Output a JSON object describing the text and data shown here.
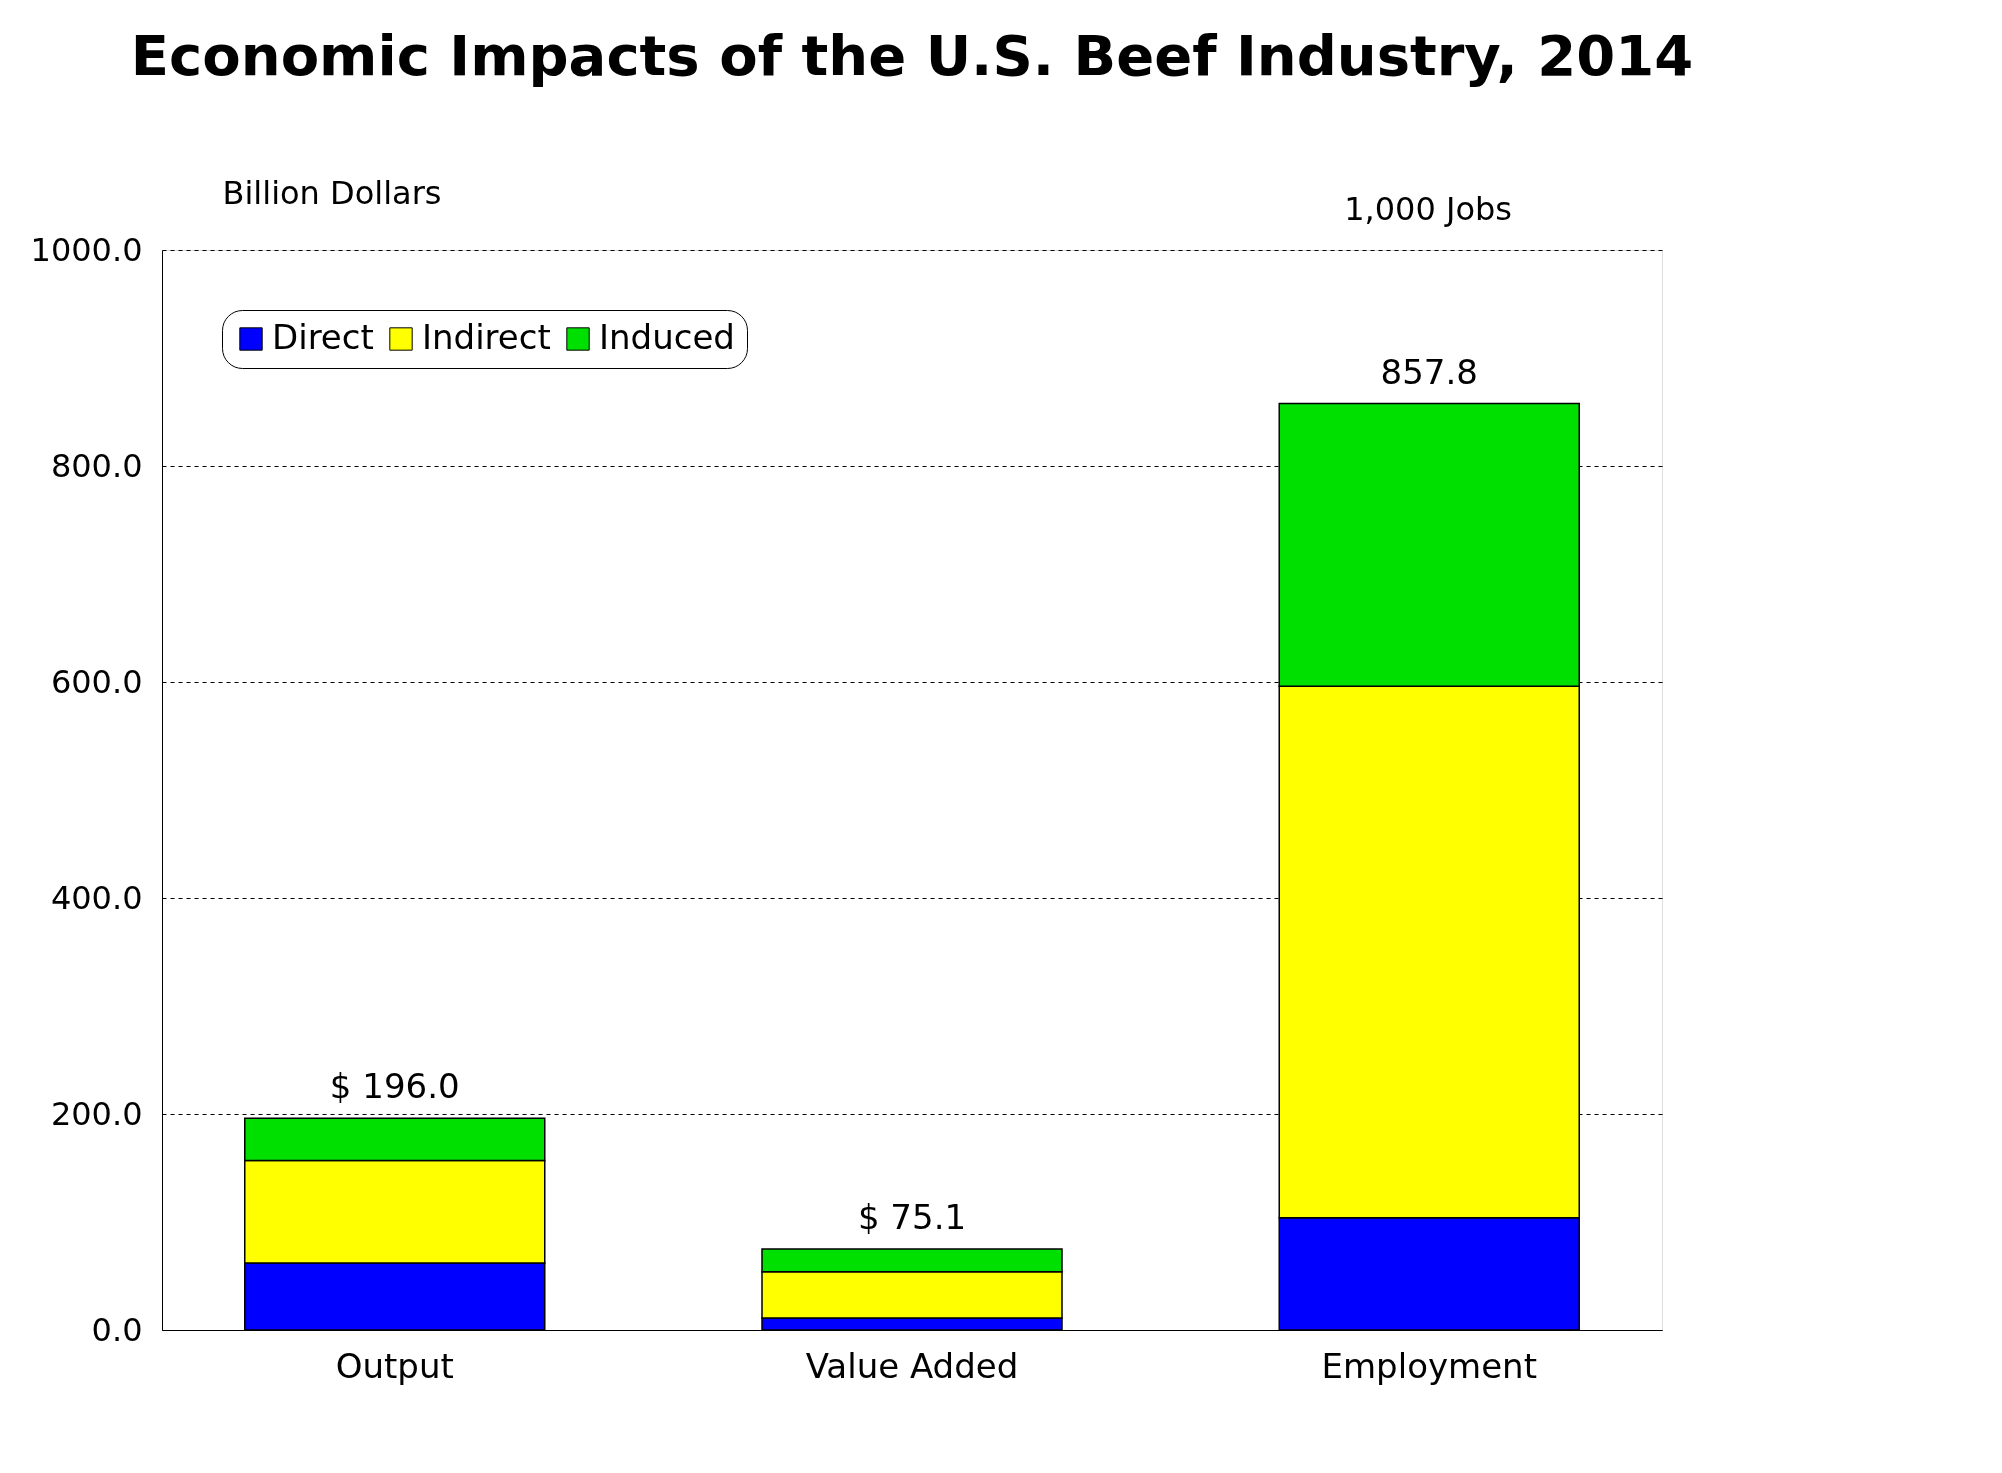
{
  "chart_data": {
    "type": "bar",
    "stacked": true,
    "title": "Economic Impacts of the U.S. Beef Industry, 2014",
    "ylabel": "Billion Dollars",
    "categories": [
      "Output",
      "Value Added",
      "Employment"
    ],
    "series": [
      {
        "name": "Direct",
        "color": "#0000ff",
        "values": [
          62,
          11,
          104
        ]
      },
      {
        "name": "Indirect",
        "color": "#ffff00",
        "values": [
          95,
          43,
          492
        ]
      },
      {
        "name": "Induced",
        "color": "#00e000",
        "values": [
          39,
          21.1,
          261.8
        ]
      }
    ],
    "totals": [
      "$ 196.0",
      "$ 75.1",
      "857.8"
    ],
    "annotations": [
      "1,000 Jobs"
    ],
    "ylim": [
      0,
      1000
    ],
    "yticks": [
      {
        "value": 0,
        "label": "0.0"
      },
      {
        "value": 200,
        "label": "200.0"
      },
      {
        "value": 400,
        "label": "400.0"
      },
      {
        "value": 600,
        "label": "600.0"
      },
      {
        "value": 800,
        "label": "800.0"
      },
      {
        "value": 1000,
        "label": "1000.0"
      }
    ],
    "grid": "y",
    "legend": "top left"
  }
}
